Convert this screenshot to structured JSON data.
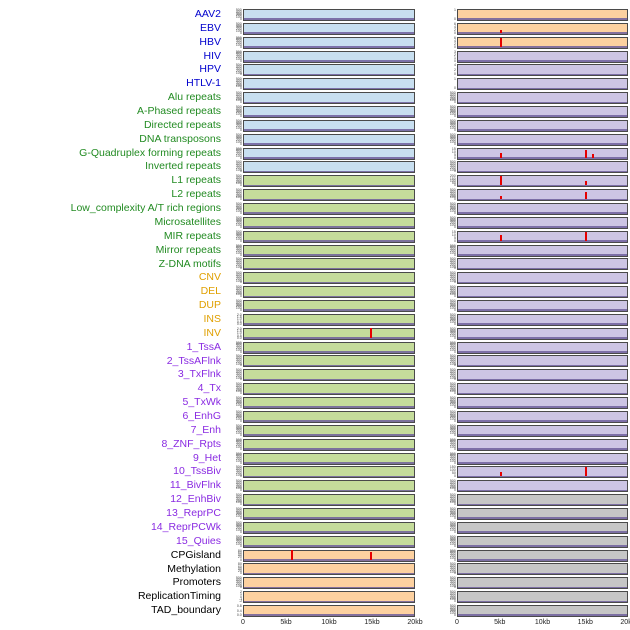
{
  "palette": {
    "panel_blue": "#c8dff0",
    "panel_green": "#c5dc9b",
    "panel_orange": "#fdd1a0",
    "panel_purple": "#cdc5e4",
    "panel_gray": "#c6c6c6",
    "label_virus": "#0000cd",
    "label_repeat": "#228b22",
    "label_sv": "#e0a000",
    "label_chromatin": "#8a2be2",
    "label_other": "#000000",
    "spike": "#e60000",
    "baseline": "#6f5f9c",
    "panel_border": "#4a4a4a",
    "axis_text": "#222222",
    "tick_text": "#444444"
  },
  "chart_data": {
    "type": "line",
    "description": "Small-multiple density tracks of genomic features across a 0-20kb window; two panel columns per feature; red spikes mark enriched positions",
    "x_axis": {
      "ticks": [
        "0",
        "5kb",
        "10kb",
        "15kb",
        "20kb"
      ],
      "range_kb": [
        0,
        20
      ]
    },
    "default_yticks": [
      "0",
      "100",
      "200",
      "300",
      "400",
      "500"
    ],
    "rows": [
      {
        "label": "AAV2",
        "group": "virus",
        "left_bg": "panel_blue",
        "right_bg": "panel_orange",
        "right_ticks": [
          "0",
          "1"
        ]
      },
      {
        "label": "EBV",
        "group": "virus",
        "left_bg": "panel_blue",
        "right_bg": "panel_orange",
        "right_ticks": [
          "0",
          "2",
          "4",
          "6"
        ],
        "right_spikes": [
          {
            "x": 5,
            "h": 0.3
          }
        ]
      },
      {
        "label": "HBV",
        "group": "virus",
        "left_bg": "panel_blue",
        "right_bg": "panel_orange",
        "right_ticks": [
          "0",
          "2",
          "4",
          "6"
        ],
        "right_spikes": [
          {
            "x": 5,
            "h": 0.9
          }
        ]
      },
      {
        "label": "HIV",
        "group": "virus",
        "left_bg": "panel_blue",
        "right_bg": "panel_purple",
        "right_ticks": [
          "0",
          "1",
          "2",
          "3"
        ]
      },
      {
        "label": "HPV",
        "group": "virus",
        "left_bg": "panel_blue",
        "right_bg": "panel_purple",
        "right_ticks": [
          "0",
          "2",
          "4"
        ]
      },
      {
        "label": "HTLV-1",
        "group": "virus",
        "left_bg": "panel_blue",
        "right_bg": "panel_purple",
        "right_ticks": [
          "0",
          "1"
        ]
      },
      {
        "label": "Alu repeats",
        "group": "repeat",
        "left_bg": "panel_blue",
        "right_bg": "panel_purple"
      },
      {
        "label": "A-Phased repeats",
        "group": "repeat",
        "left_bg": "panel_blue",
        "right_bg": "panel_purple"
      },
      {
        "label": "Directed repeats",
        "group": "repeat",
        "left_bg": "panel_blue",
        "right_bg": "panel_purple"
      },
      {
        "label": "DNA transposons",
        "group": "repeat",
        "left_bg": "panel_blue",
        "right_bg": "panel_purple"
      },
      {
        "label": "G-Quadruplex forming repeats",
        "group": "repeat",
        "left_bg": "panel_blue",
        "right_bg": "panel_purple",
        "right_ticks": [
          "0",
          "5",
          "10",
          "15"
        ],
        "right_spikes": [
          {
            "x": 5,
            "h": 0.5
          },
          {
            "x": 15,
            "h": 0.8
          },
          {
            "x": 15.8,
            "h": 0.35
          }
        ]
      },
      {
        "label": "Inverted repeats",
        "group": "repeat",
        "left_bg": "panel_blue",
        "right_bg": "panel_purple"
      },
      {
        "label": "L1 repeats",
        "group": "repeat",
        "left_bg": "panel_green",
        "right_bg": "panel_purple",
        "right_ticks": [
          "0",
          "50",
          "100",
          "150",
          "200"
        ],
        "right_spikes": [
          {
            "x": 5,
            "h": 0.9
          },
          {
            "x": 15,
            "h": 0.45
          }
        ]
      },
      {
        "label": "L2 repeats",
        "group": "repeat",
        "left_bg": "panel_green",
        "right_bg": "panel_purple",
        "right_spikes": [
          {
            "x": 5,
            "h": 0.35
          },
          {
            "x": 15,
            "h": 0.75
          }
        ]
      },
      {
        "label": "Low_complexity A/T rich regions",
        "group": "repeat",
        "left_bg": "panel_green",
        "right_bg": "panel_purple"
      },
      {
        "label": "Microsatellites",
        "group": "repeat",
        "left_bg": "panel_green",
        "right_bg": "panel_purple"
      },
      {
        "label": "MIR repeats",
        "group": "repeat",
        "left_bg": "panel_green",
        "right_bg": "panel_purple",
        "right_ticks": [
          "0",
          "5",
          "10",
          "15"
        ],
        "right_spikes": [
          {
            "x": 5,
            "h": 0.6
          },
          {
            "x": 15,
            "h": 0.85
          }
        ]
      },
      {
        "label": "Mirror repeats",
        "group": "repeat",
        "left_bg": "panel_green",
        "right_bg": "panel_purple"
      },
      {
        "label": "Z-DNA motifs",
        "group": "repeat",
        "left_bg": "panel_green",
        "right_bg": "panel_purple"
      },
      {
        "label": "CNV",
        "group": "sv",
        "left_bg": "panel_green",
        "right_bg": "panel_purple"
      },
      {
        "label": "DEL",
        "group": "sv",
        "left_bg": "panel_green",
        "right_bg": "panel_purple"
      },
      {
        "label": "DUP",
        "group": "sv",
        "left_bg": "panel_green",
        "right_bg": "panel_purple"
      },
      {
        "label": "INS",
        "group": "sv",
        "left_bg": "panel_green",
        "right_bg": "panel_purple",
        "left_ticks": [
          "0.0",
          "0.5",
          "1.0",
          "1.5",
          "2.0"
        ]
      },
      {
        "label": "INV",
        "group": "sv",
        "left_bg": "panel_green",
        "right_bg": "panel_purple",
        "left_ticks": [
          "0.0",
          "0.5",
          "1.0",
          "1.5",
          "2.0"
        ],
        "left_spikes": [
          {
            "x": 14.8,
            "h": 0.95
          }
        ]
      },
      {
        "label": "1_TssA",
        "group": "chromatin",
        "left_bg": "panel_green",
        "right_bg": "panel_purple"
      },
      {
        "label": "2_TssAFlnk",
        "group": "chromatin",
        "left_bg": "panel_green",
        "right_bg": "panel_purple"
      },
      {
        "label": "3_TxFlnk",
        "group": "chromatin",
        "left_bg": "panel_green",
        "right_bg": "panel_purple"
      },
      {
        "label": "4_Tx",
        "group": "chromatin",
        "left_bg": "panel_green",
        "right_bg": "panel_purple"
      },
      {
        "label": "5_TxWk",
        "group": "chromatin",
        "left_bg": "panel_green",
        "right_bg": "panel_purple"
      },
      {
        "label": "6_EnhG",
        "group": "chromatin",
        "left_bg": "panel_green",
        "right_bg": "panel_purple"
      },
      {
        "label": "7_Enh",
        "group": "chromatin",
        "left_bg": "panel_green",
        "right_bg": "panel_purple"
      },
      {
        "label": "8_ZNF_Rpts",
        "group": "chromatin",
        "left_bg": "panel_green",
        "right_bg": "panel_purple"
      },
      {
        "label": "9_Het",
        "group": "chromatin",
        "left_bg": "panel_green",
        "right_bg": "panel_purple"
      },
      {
        "label": "10_TssBiv",
        "group": "chromatin",
        "left_bg": "panel_green",
        "right_bg": "panel_purple",
        "right_ticks": [
          "0",
          "50",
          "100",
          "150"
        ],
        "right_spikes": [
          {
            "x": 5,
            "h": 0.4
          },
          {
            "x": 15,
            "h": 0.9
          }
        ]
      },
      {
        "label": "11_BivFlnk",
        "group": "chromatin",
        "left_bg": "panel_green",
        "right_bg": "panel_purple"
      },
      {
        "label": "12_EnhBiv",
        "group": "chromatin",
        "left_bg": "panel_green",
        "right_bg": "panel_gray"
      },
      {
        "label": "13_ReprPC",
        "group": "chromatin",
        "left_bg": "panel_green",
        "right_bg": "panel_gray"
      },
      {
        "label": "14_ReprPCWk",
        "group": "chromatin",
        "left_bg": "panel_green",
        "right_bg": "panel_gray"
      },
      {
        "label": "15_Quies",
        "group": "chromatin",
        "left_bg": "panel_green",
        "right_bg": "panel_gray"
      },
      {
        "label": "CPGisland",
        "group": "other",
        "left_bg": "panel_orange",
        "right_bg": "panel_gray",
        "left_ticks": [
          "0",
          "20",
          "40",
          "60",
          "80"
        ],
        "left_spikes": [
          {
            "x": 5.5,
            "h": 0.95
          },
          {
            "x": 14.8,
            "h": 0.8
          }
        ]
      },
      {
        "label": "Methylation",
        "group": "other",
        "left_bg": "panel_orange",
        "right_bg": "panel_gray",
        "left_ticks": [
          "0",
          "20",
          "40",
          "60",
          "80"
        ]
      },
      {
        "label": "Promoters",
        "group": "other",
        "left_bg": "panel_orange",
        "right_bg": "panel_gray"
      },
      {
        "label": "ReplicationTiming",
        "group": "other",
        "left_bg": "panel_orange",
        "right_bg": "panel_gray",
        "left_ticks": [
          "-2",
          "-1",
          "0",
          "1",
          "2"
        ]
      },
      {
        "label": "TAD_boundary",
        "group": "other",
        "left_bg": "panel_orange",
        "right_bg": "panel_gray",
        "left_ticks": [
          "0.0",
          "0.4",
          "0.8"
        ]
      }
    ]
  }
}
